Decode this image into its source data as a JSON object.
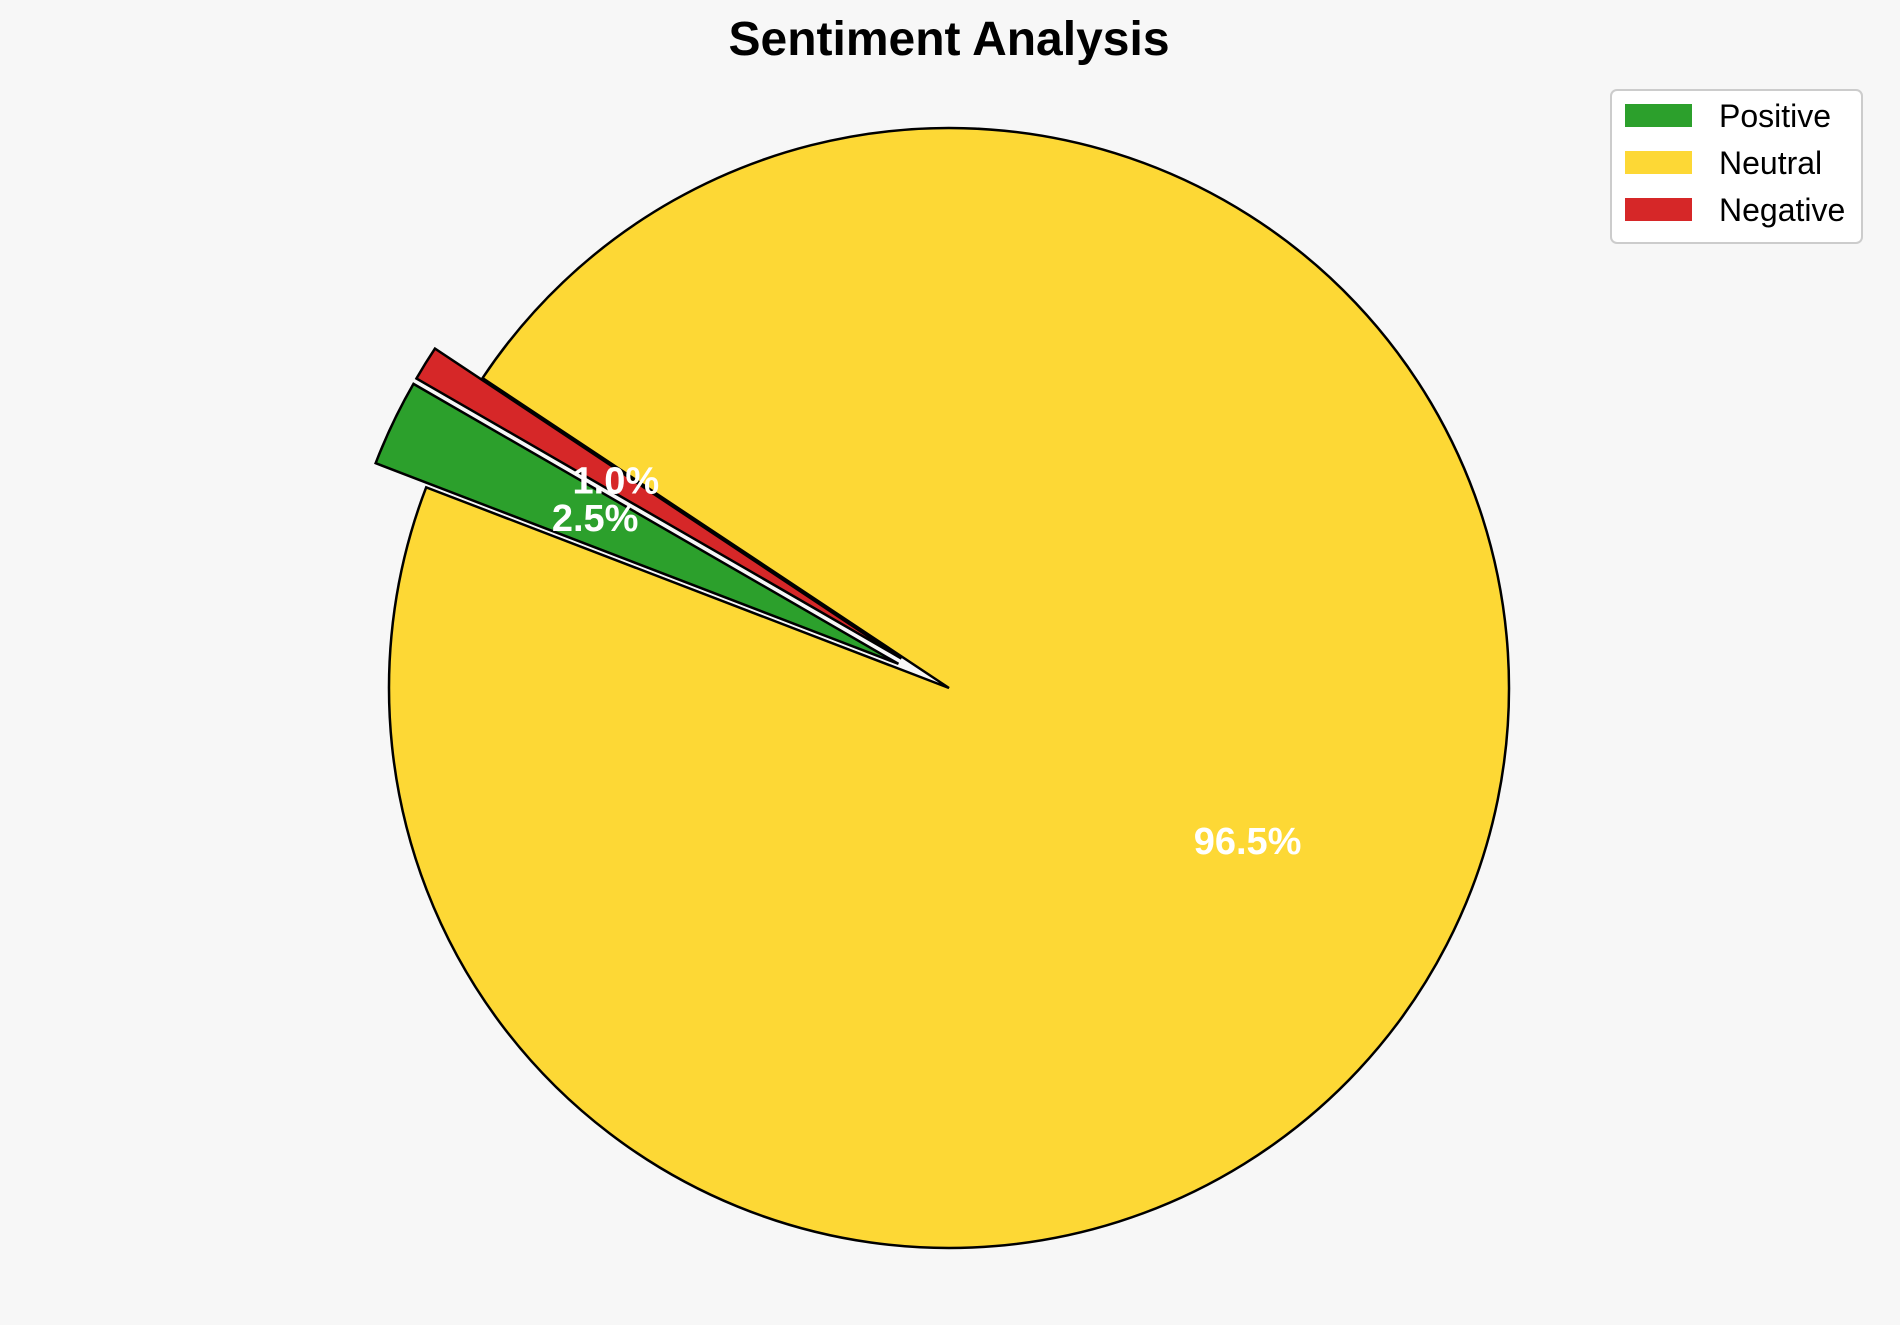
{
  "chart_data": {
    "type": "pie",
    "title": "Sentiment Analysis",
    "slices": [
      {
        "label": "Positive",
        "value": 2.5,
        "pct_label": "2.5%",
        "color": "#2ca02c",
        "exploded": true
      },
      {
        "label": "Neutral",
        "value": 96.5,
        "pct_label": "96.5%",
        "color": "#fdd835",
        "exploded": false
      },
      {
        "label": "Negative",
        "value": 1.0,
        "pct_label": "1.0%",
        "color": "#d62728",
        "exploded": true
      }
    ],
    "legend": {
      "placement": "top-right",
      "entries": [
        "Positive",
        "Neutral",
        "Negative"
      ]
    },
    "start_angle_deg": 150,
    "direction": "counterclockwise"
  }
}
